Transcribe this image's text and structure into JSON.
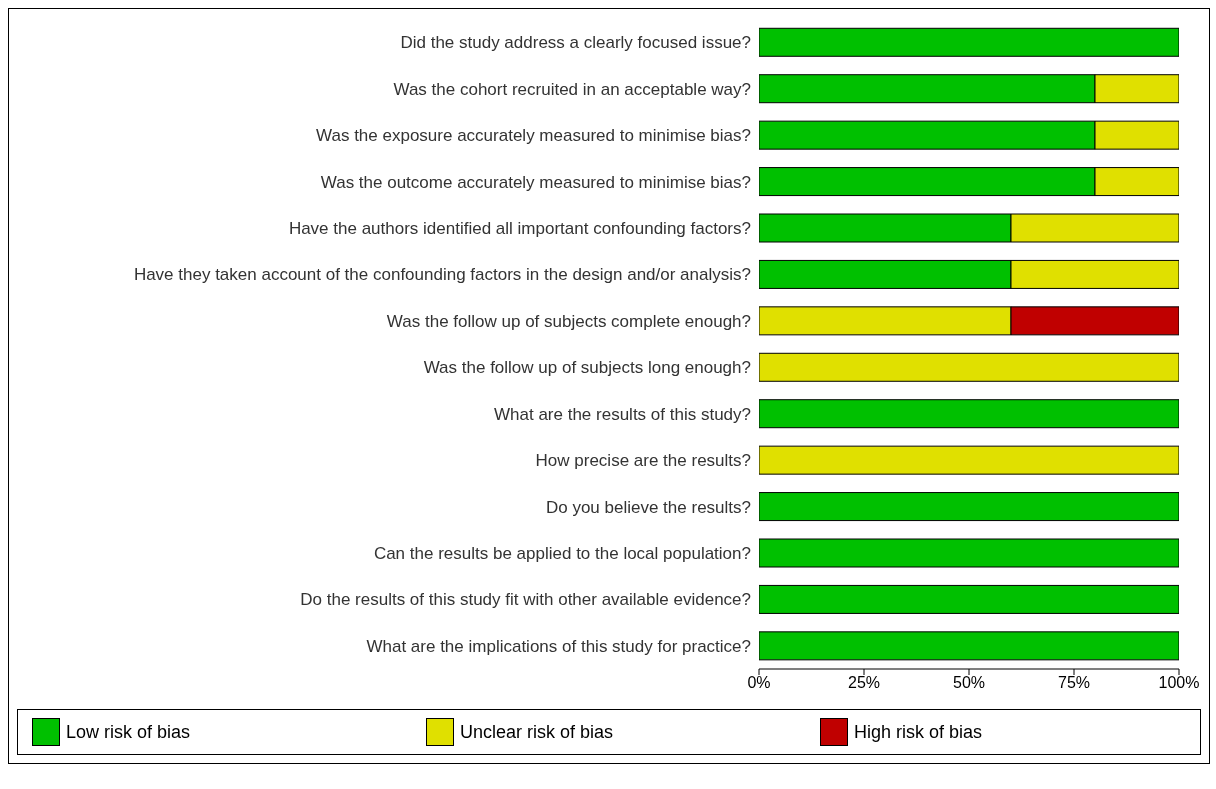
{
  "chart_data": {
    "type": "bar",
    "orientation": "horizontal",
    "stacked": true,
    "categories": [
      "Did the study address a clearly focused issue?",
      "Was the cohort recruited in an acceptable way?",
      "Was the exposure accurately measured to minimise bias?",
      "Was the outcome accurately measured to minimise bias?",
      "Have the authors identified all important confounding factors?",
      "Have they taken account of the confounding factors in the design and/or analysis?",
      "Was the follow up of subjects complete enough?",
      "Was the follow up of subjects long enough?",
      "What are the results of this study?",
      "How precise are the results?",
      "Do you believe the results?",
      "Can the results be applied to the local population?",
      "Do the results of this study fit with other available evidence?",
      "What are the implications of this study for practice?"
    ],
    "series": [
      {
        "name": "Low risk of bias",
        "color": "#00c000",
        "values": [
          100,
          80,
          80,
          80,
          60,
          60,
          0,
          0,
          100,
          0,
          100,
          100,
          100,
          100
        ]
      },
      {
        "name": "Unclear risk of bias",
        "color": "#e0e000",
        "values": [
          0,
          20,
          20,
          20,
          40,
          40,
          60,
          100,
          0,
          100,
          0,
          0,
          0,
          0
        ]
      },
      {
        "name": "High risk of bias",
        "color": "#c00000",
        "values": [
          0,
          0,
          0,
          0,
          0,
          0,
          40,
          0,
          0,
          0,
          0,
          0,
          0,
          0
        ]
      }
    ],
    "xlim": [
      0,
      100
    ],
    "xticks": [
      {
        "value": 0,
        "label": "0%"
      },
      {
        "value": 25,
        "label": "25%"
      },
      {
        "value": 50,
        "label": "50%"
      },
      {
        "value": 75,
        "label": "75%"
      },
      {
        "value": 100,
        "label": "100%"
      }
    ],
    "legend": "bottom"
  }
}
